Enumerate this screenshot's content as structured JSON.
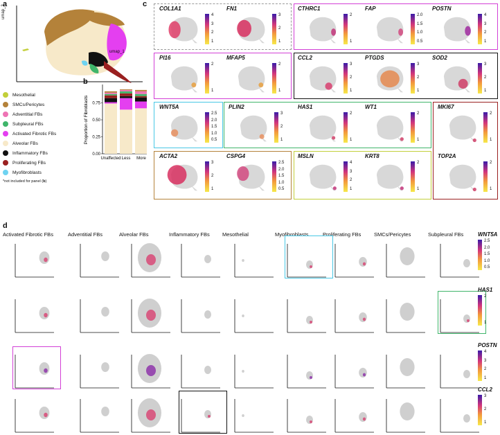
{
  "panels": {
    "a": "a",
    "b": "b",
    "c": "c",
    "d": "d"
  },
  "panel_a": {
    "ylabel": "umap_2",
    "xlabel": "umap_1"
  },
  "legend": {
    "items": [
      {
        "label": "Mesothelial",
        "color": "#c2cf3a"
      },
      {
        "label": "SMCs/Pericytes",
        "color": "#b4823a"
      },
      {
        "label": "Adventitial FBs",
        "color": "#ee73b4"
      },
      {
        "label": "Subpleural FBs",
        "color": "#3fb56a"
      },
      {
        "label": "Activated Fibrotic FBs",
        "color": "#e43ff0"
      },
      {
        "label": "Alveolar FBs",
        "color": "#f7e9c9"
      },
      {
        "label": "Inflammatory FBs",
        "color": "#111111"
      },
      {
        "label": "Proliferating FBs",
        "color": "#9a2020"
      },
      {
        "label": "Myofibroblasts",
        "color": "#6ed3f1"
      }
    ],
    "footnote_pre": "*not included for panel (",
    "footnote_b": "b",
    "footnote_post": ")"
  },
  "chart_data": {
    "type": "bar",
    "stacked": true,
    "ylabel": "Proportion of Fibroblasts",
    "categories": [
      "Unaffected",
      "Less",
      "More"
    ],
    "yticks": [
      "0.00",
      "0.25",
      "0.50",
      "0.75"
    ],
    "ylim": [
      0,
      1
    ],
    "series": [
      {
        "name": "Alveolar FBs",
        "color": "#f7e9c9",
        "values": [
          0.74,
          0.65,
          0.67
        ]
      },
      {
        "name": "Activated Fibrotic FBs",
        "color": "#e43ff0",
        "values": [
          0.02,
          0.17,
          0.1
        ]
      },
      {
        "name": "Inflammatory FBs",
        "color": "#111111",
        "values": [
          0.06,
          0.03,
          0.06
        ]
      },
      {
        "name": "Proliferating FBs",
        "color": "#9a2020",
        "values": [
          0.04,
          0.04,
          0.02
        ]
      },
      {
        "name": "Subpleural FBs",
        "color": "#3fb56a",
        "values": [
          0.02,
          0.03,
          0.03
        ]
      },
      {
        "name": "Adventitial FBs",
        "color": "#ee73b4",
        "values": [
          0.02,
          0.02,
          0.04
        ]
      },
      {
        "name": "SMCs/Pericytes",
        "color": "#b4823a",
        "values": [
          0.02,
          0.01,
          0.02
        ]
      }
    ]
  },
  "panel_c": {
    "genes": [
      {
        "name": "COL1A1",
        "ticks": [
          "4",
          "3",
          "2",
          "1"
        ]
      },
      {
        "name": "FN1",
        "ticks": [
          "3",
          "2",
          "1"
        ]
      },
      {
        "name": "CTHRC1",
        "ticks": [
          "2",
          "1"
        ]
      },
      {
        "name": "FAP",
        "ticks": [
          "2.0",
          "1.5",
          "1.0",
          "0.5"
        ]
      },
      {
        "name": "POSTN",
        "ticks": [
          "4",
          "3",
          "2",
          "1"
        ]
      },
      {
        "name": "PI16",
        "ticks": [
          "2",
          "1"
        ]
      },
      {
        "name": "MFAP5",
        "ticks": [
          "2",
          "1"
        ]
      },
      {
        "name": "CCL2",
        "ticks": [
          "3",
          "2",
          "1"
        ]
      },
      {
        "name": "PTGDS",
        "ticks": [
          "3",
          "2",
          "1"
        ]
      },
      {
        "name": "SOD2",
        "ticks": [
          "3",
          "2",
          "1"
        ]
      },
      {
        "name": "WNT5A",
        "ticks": [
          "2.5",
          "2.0",
          "1.5",
          "1.0",
          "0.5"
        ]
      },
      {
        "name": "PLIN2",
        "ticks": [
          "3",
          "2",
          "1"
        ]
      },
      {
        "name": "HAS1",
        "ticks": [
          "2",
          "1"
        ]
      },
      {
        "name": "WT1",
        "ticks": [
          "2",
          "1"
        ]
      },
      {
        "name": "MKI67",
        "ticks": [
          "2",
          "1"
        ]
      },
      {
        "name": "ACTA2",
        "ticks": [
          "3",
          "2",
          "1"
        ]
      },
      {
        "name": "CSPG4",
        "ticks": [
          "2.5",
          "2.0",
          "1.5",
          "1.0",
          "0.5"
        ]
      },
      {
        "name": "MSLN",
        "ticks": [
          "4",
          "3",
          "2",
          "1"
        ]
      },
      {
        "name": "KRT8",
        "ticks": [
          "2",
          "1"
        ]
      },
      {
        "name": "TOP2A",
        "ticks": [
          "2",
          "1"
        ]
      }
    ]
  },
  "panel_d": {
    "columns": [
      "Activated Fibrotic FBs",
      "Adventitial FBs",
      "Alveolar FBs",
      "Inflammatory FBs",
      "Mesothelial",
      "Myofibroblasts",
      "Proliferating FBs",
      "SMCs/Pericytes",
      "Subpleural FBs"
    ],
    "rows": [
      {
        "gene": "WNT5A",
        "ticks": [
          "2.5",
          "2.0",
          "1.5",
          "1.0",
          "0.5"
        ]
      },
      {
        "gene": "HAS1",
        "ticks": [
          "2",
          "1"
        ]
      },
      {
        "gene": "POSTN",
        "ticks": [
          "4",
          "3",
          "2",
          "1"
        ]
      },
      {
        "gene": "CCL2",
        "ticks": [
          "3",
          "2",
          "1"
        ]
      }
    ]
  }
}
